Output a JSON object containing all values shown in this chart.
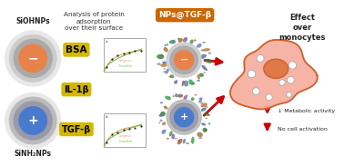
{
  "title_text": "Analysis of protein\nadsorption\nover their surface",
  "np1_label": "SiOHNPs",
  "np2_label": "SiNH₂NPs",
  "protein_labels": [
    "BSA",
    "IL-1β",
    "TGF-β"
  ],
  "nps_tgf_label": "NPs@TGF-β",
  "effect_label": "Effect\nover\nmonocytes",
  "metabolic_label": "↓ Metabolic activity",
  "no_cell_label": "No cell activation",
  "bg_color": "#ffffff",
  "np1_outer_color": "#cccccc",
  "np1_mid_color": "#aaaaaa",
  "np1_inner_color": "#e8824a",
  "np1_sign": "−",
  "np2_outer_color": "#bbbbbb",
  "np2_mid_color": "#9999aa",
  "np2_inner_color": "#4a7acc",
  "np2_sign": "+",
  "label_bg": "#d4b800",
  "label_text_color": "#000000",
  "nps_label_bg": "#cc6600",
  "nps_label_text": "#ffffff",
  "arrow_color": "#cc0000",
  "monocyte_fill": "#f5b0a0",
  "monocyte_border": "#d06030",
  "monocyte_nucleus_fill": "#e07848",
  "down_arrow_color": "#cc0000"
}
